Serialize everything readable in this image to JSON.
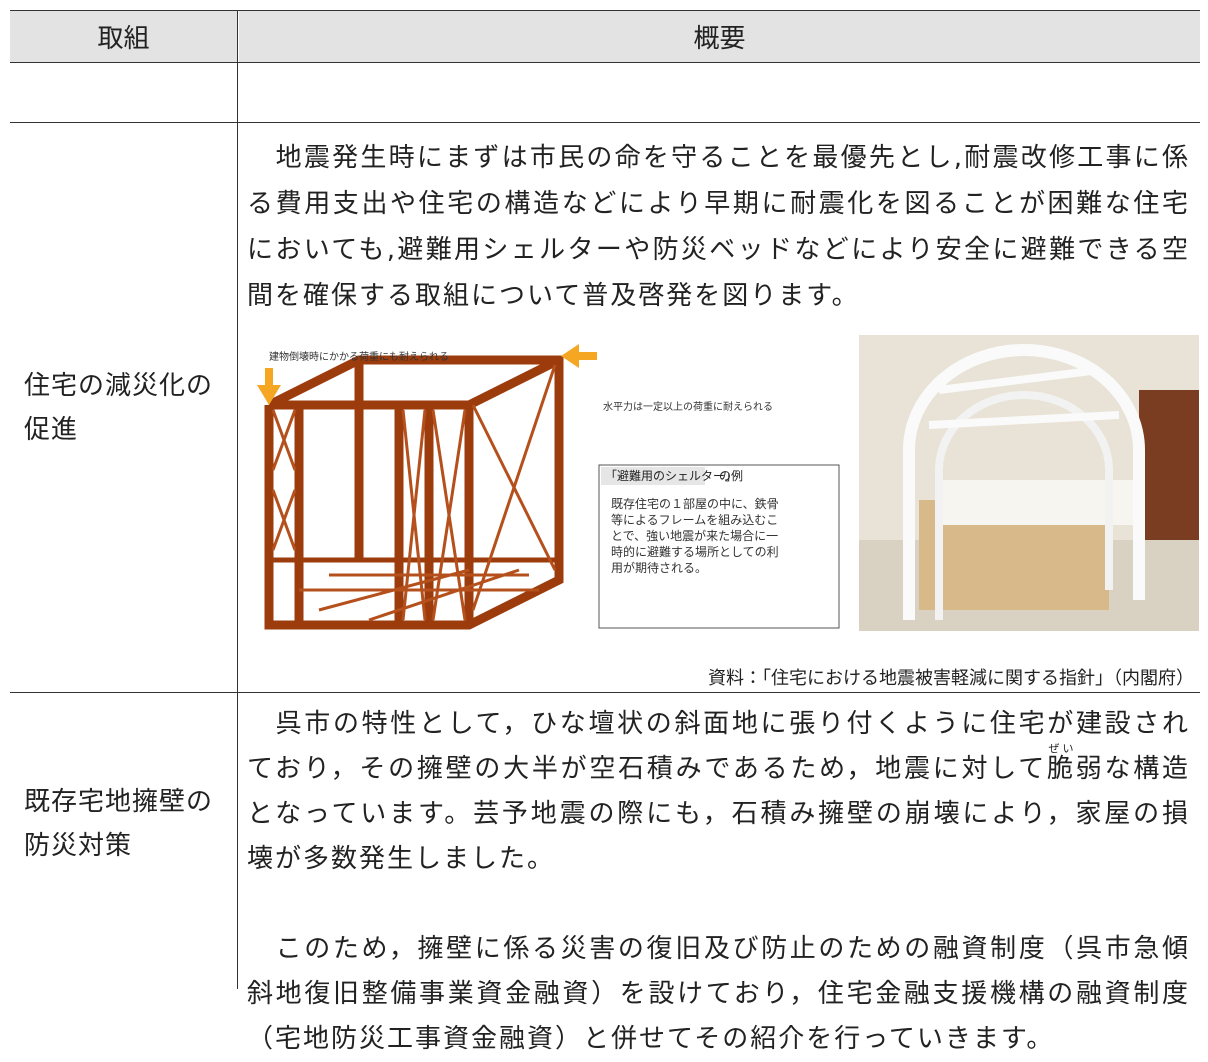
{
  "table": {
    "headers": [
      "取組",
      "概要"
    ],
    "rows": [
      {
        "label": "住宅の減災化の促進",
        "paragraph": "地震発生時にまずは市民の命を守ることを最優先とし,耐震改修工事に係る費用支出や住宅の構造などにより早期に耐震化を図ることが困難な住宅においても,避難用シェルターや防災ベッドなどにより安全に避難できる空間を確保する取組について普及啓発を図ります。",
        "figure": {
          "top_note": "建物倒壊時にかかる荷重にも耐えられる",
          "side_note": "水平力は一定以上の荷重に耐えられる",
          "box_title": "「避難用のシェルター」",
          "box_suffix": "の例",
          "box_lines": [
            "既存住宅の１部屋の中に、鉄骨",
            "等によるフレームを組み込むこ",
            "とで、強い地震が来た場合に一",
            "時的に避難する場所としての利",
            "用が期待される。"
          ]
        },
        "source": "資料：「住宅における地震被害軽減に関する指針」（内閣府）"
      },
      {
        "label": "既存宅地擁壁の防災対策",
        "paragraph_1_before": "呉市の特性として，ひな壇状の斜面地に張り付くように住宅が建設されており，その擁壁の大半が空石積みであるため，地震に対して",
        "ruby_base": "脆",
        "ruby_text": "ぜい",
        "paragraph_1_after": "弱な構造となっています。芸予地震の際にも，石積み擁壁の崩壊により，家屋の損壊が多数発生しました。",
        "paragraph_2": "このため，擁壁に係る災害の復旧及び防止のための融資制度（呉市急傾斜地復旧整備事業資金融資）を設けており，住宅金融支援機構の融資制度（宅地防災工事資金融資）と併せてその紹介を行っていきます。"
      }
    ]
  }
}
